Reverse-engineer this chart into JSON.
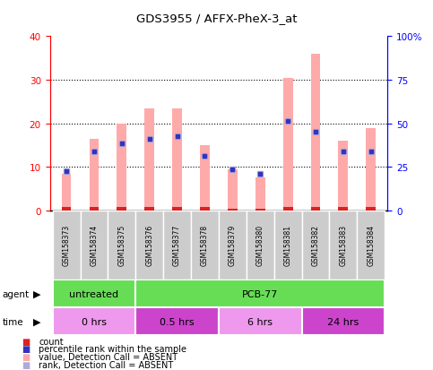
{
  "title": "GDS3955 / AFFX-PheX-3_at",
  "samples": [
    "GSM158373",
    "GSM158374",
    "GSM158375",
    "GSM158376",
    "GSM158377",
    "GSM158378",
    "GSM158379",
    "GSM158380",
    "GSM158381",
    "GSM158382",
    "GSM158383",
    "GSM158384"
  ],
  "pink_bar_values": [
    8.5,
    16.5,
    20.0,
    23.5,
    23.5,
    15.0,
    9.5,
    7.5,
    30.5,
    36.0,
    16.0,
    19.0
  ],
  "red_bar_values": [
    0.8,
    0.8,
    0.8,
    0.8,
    0.8,
    0.8,
    0.5,
    0.5,
    0.8,
    0.8,
    0.8,
    0.8
  ],
  "blue_square_values": [
    9.0,
    13.5,
    15.5,
    16.5,
    17.0,
    12.5,
    9.5,
    8.5,
    20.5,
    18.0,
    13.5,
    13.5
  ],
  "light_blue_square_values": [
    9.0,
    13.5,
    15.5,
    16.5,
    17.0,
    12.5,
    9.5,
    8.5,
    20.5,
    18.0,
    13.5,
    13.5
  ],
  "ylim_left": [
    0,
    40
  ],
  "ylim_right": [
    0,
    100
  ],
  "yticks_left": [
    0,
    10,
    20,
    30,
    40
  ],
  "yticks_right": [
    0,
    25,
    50,
    75,
    100
  ],
  "ytick_labels_right": [
    "0",
    "25",
    "50",
    "75",
    "100%"
  ],
  "pink_color": "#ffaaaa",
  "red_color": "#dd2222",
  "blue_color": "#3333bb",
  "light_blue_color": "#aaaadd",
  "green_color": "#66dd55",
  "sample_bg_color": "#cccccc",
  "time_colors": [
    "#ee99ee",
    "#cc44cc",
    "#ee99ee",
    "#cc44cc"
  ],
  "bar_width": 0.35,
  "agent_data": [
    {
      "label": "untreated",
      "start": 0,
      "end": 3
    },
    {
      "label": "PCB-77",
      "start": 3,
      "end": 12
    }
  ],
  "time_data": [
    {
      "label": "0 hrs",
      "start": 0,
      "end": 3,
      "color": "#ee99ee"
    },
    {
      "label": "0.5 hrs",
      "start": 3,
      "end": 6,
      "color": "#cc44cc"
    },
    {
      "label": "6 hrs",
      "start": 6,
      "end": 9,
      "color": "#ee99ee"
    },
    {
      "label": "24 hrs",
      "start": 9,
      "end": 12,
      "color": "#cc44cc"
    }
  ],
  "legend_items": [
    {
      "color": "#dd2222",
      "label": "count"
    },
    {
      "color": "#3333bb",
      "label": "percentile rank within the sample"
    },
    {
      "color": "#ffaaaa",
      "label": "value, Detection Call = ABSENT"
    },
    {
      "color": "#aaaadd",
      "label": "rank, Detection Call = ABSENT"
    }
  ]
}
